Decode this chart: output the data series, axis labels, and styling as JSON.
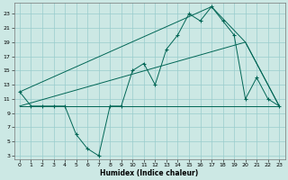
{
  "bg_color": "#cce8e4",
  "grid_color": "#99cccc",
  "line_color": "#006655",
  "xlabel": "Humidex (Indice chaleur)",
  "xlim": [
    -0.5,
    23.5
  ],
  "ylim": [
    2.5,
    24.5
  ],
  "xticks": [
    0,
    1,
    2,
    3,
    4,
    5,
    6,
    7,
    8,
    9,
    10,
    11,
    12,
    13,
    14,
    15,
    16,
    17,
    18,
    19,
    20,
    21,
    22,
    23
  ],
  "yticks": [
    3,
    5,
    7,
    9,
    11,
    13,
    15,
    17,
    19,
    21,
    23
  ],
  "line1_x": [
    0,
    1,
    2,
    3,
    4,
    5,
    6,
    7,
    8,
    9,
    10,
    11,
    12,
    13,
    14,
    15,
    16,
    17,
    18,
    19,
    20,
    21,
    22,
    23
  ],
  "line1_y": [
    12,
    10,
    10,
    10,
    10,
    6,
    4,
    3,
    10,
    10,
    15,
    16,
    13,
    18,
    20,
    23,
    22,
    24,
    22,
    20,
    11,
    14,
    11,
    10
  ],
  "line2_x": [
    0,
    23
  ],
  "line2_y": [
    10,
    10
  ],
  "line3_x": [
    0,
    17,
    20,
    23
  ],
  "line3_y": [
    12,
    24,
    19,
    10
  ],
  "line4_x": [
    0,
    20,
    23
  ],
  "line4_y": [
    10,
    19,
    10
  ]
}
